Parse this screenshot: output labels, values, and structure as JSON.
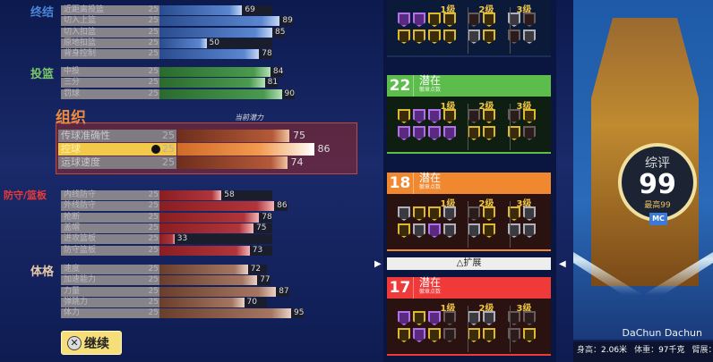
{
  "sections": {
    "finishing": {
      "title": "终结",
      "color": "#4a86d8",
      "rows": [
        {
          "label": "近距离投篮",
          "base": "25",
          "value": 69
        },
        {
          "label": "切入上篮",
          "base": "25",
          "value": 89
        },
        {
          "label": "切入扣篮",
          "base": "25",
          "value": 85
        },
        {
          "label": "原地扣篮",
          "base": "25",
          "value": 50
        },
        {
          "label": "背身控制",
          "base": "25",
          "value": 78
        }
      ]
    },
    "shooting": {
      "title": "投篮",
      "color": "#7ac86a",
      "rows": [
        {
          "label": "中投",
          "base": "25",
          "value": 84
        },
        {
          "label": "三分",
          "base": "25",
          "value": 81
        },
        {
          "label": "罚球",
          "base": "25",
          "value": 90
        }
      ]
    },
    "playmaking": {
      "title": "组织",
      "potential_label": "当前潜力",
      "rows": [
        {
          "label": "传球准确性",
          "base": "25",
          "value": 75
        },
        {
          "label": "控球",
          "base": "25",
          "value": 86,
          "selected": true
        },
        {
          "label": "运球速度",
          "base": "25",
          "value": 74
        }
      ]
    },
    "defense": {
      "title": "防守/篮板",
      "color": "#e83a3a",
      "rows": [
        {
          "label": "内线防守",
          "base": "25",
          "value": 58
        },
        {
          "label": "外线防守",
          "base": "25",
          "value": 86
        },
        {
          "label": "抢断",
          "base": "25",
          "value": 78
        },
        {
          "label": "盖帽",
          "base": "25",
          "value": 75
        },
        {
          "label": "进攻篮板",
          "base": "25",
          "value": 33
        },
        {
          "label": "防守篮板",
          "base": "25",
          "value": 73
        }
      ]
    },
    "physical": {
      "title": "体格",
      "color": "#e8c8a8",
      "rows": [
        {
          "label": "速度",
          "base": "25",
          "value": 72
        },
        {
          "label": "加速能力",
          "base": "25",
          "value": 77
        },
        {
          "label": "力量",
          "base": "25",
          "value": 87
        },
        {
          "label": "弹跳力",
          "base": "25",
          "value": 70
        },
        {
          "label": "体力",
          "base": "25",
          "value": 95
        }
      ]
    }
  },
  "continue_button": {
    "icon": "cross-button-icon",
    "label": "继续"
  },
  "badge_panels": [
    {
      "points": "",
      "title": "",
      "subtitle": "",
      "color": "#1a2c5a",
      "tiers": {
        "t1": "1级",
        "t2": "2级",
        "t3": "3级"
      },
      "t1": [
        "purple",
        "purple",
        "gold",
        "gold",
        "gold",
        "gold",
        "gold",
        "gold"
      ],
      "t2": [
        "dark",
        "gold",
        "silver",
        "gold"
      ],
      "t3": [
        "silver",
        "dark",
        "dark",
        "silver"
      ]
    },
    {
      "points": "22",
      "title": "潜在",
      "subtitle": "徽章点数",
      "color": "#5cbc4c",
      "tiers": {
        "t1": "1级",
        "t2": "2级",
        "t3": "3级"
      },
      "t1": [
        "gold",
        "purple",
        "purple",
        "gold",
        "purple",
        "purple",
        "purple",
        "purple"
      ],
      "t2": [
        "dark",
        "gold",
        "gold",
        "gold"
      ],
      "t3": [
        "dark",
        "gold",
        "gold",
        "dark"
      ]
    },
    {
      "points": "18",
      "title": "潜在",
      "subtitle": "徽章点数",
      "color": "#f08830",
      "tiers": {
        "t1": "1级",
        "t2": "2级",
        "t3": "3级"
      },
      "t1": [
        "silver",
        "gold",
        "gold",
        "silver",
        "gold",
        "silver",
        "purple",
        "silver"
      ],
      "t2": [
        "dark",
        "gold",
        "silver",
        "gold"
      ],
      "t3": [
        "gold",
        "silver",
        "silver",
        "silver"
      ]
    },
    {
      "points": "17",
      "title": "潜在",
      "subtitle": "徽章点数",
      "color": "#f03a3a",
      "tiers": {
        "t1": "1级",
        "t2": "2级",
        "t3": "3级"
      },
      "t1": [
        "purple",
        "gold",
        "purple",
        "dark",
        "gold",
        "purple",
        "gold",
        "dark"
      ],
      "t2": [
        "silver",
        "silver",
        "gold",
        "gold"
      ],
      "t3": [
        "dark",
        "dark",
        "dark",
        "gold"
      ]
    }
  ],
  "expand_button": {
    "icon": "triangle-button-icon",
    "label": "扩展"
  },
  "player": {
    "overall_label": "综评",
    "overall": "99",
    "max_label": "最高99",
    "badge": "MC",
    "name": "DaChun Dachun",
    "height_label": "身高：",
    "height": "2.06米",
    "weight_label": "体重：",
    "weight": "97千克",
    "wingspan_label": "臂展："
  }
}
